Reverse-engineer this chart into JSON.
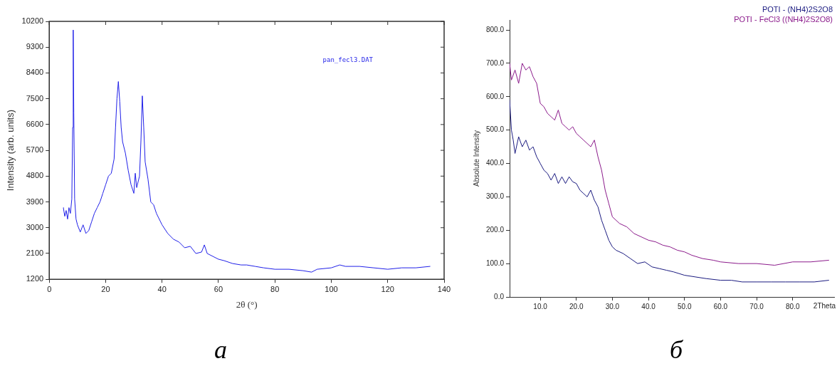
{
  "chart_data": [
    {
      "type": "line",
      "xlabel": "2θ (°)",
      "ylabel": "Intensity (arb. units)",
      "xlim": [
        0,
        140
      ],
      "ylim": [
        1200,
        10200
      ],
      "xticks": [
        0,
        20,
        40,
        60,
        80,
        100,
        120,
        140
      ],
      "yticks": [
        1200,
        2100,
        3000,
        3900,
        4800,
        5700,
        6600,
        7500,
        8400,
        9300,
        10200
      ],
      "grid": false,
      "legend": "top right",
      "line_style": "solid",
      "annotations": [
        "а"
      ],
      "series": [
        {
          "name": "pan_fecl3.DAT",
          "color": "#1f1fe8",
          "x": [
            5,
            5.5,
            6,
            6.5,
            7,
            7.5,
            8,
            8.3,
            8.5,
            8.7,
            9,
            9.5,
            10,
            11,
            12,
            13,
            14,
            15,
            16,
            17,
            18,
            19,
            20,
            21,
            22,
            23,
            23.5,
            24,
            24.5,
            25,
            25.5,
            26,
            27,
            28,
            29,
            30,
            30.5,
            31,
            32,
            32.5,
            33,
            33.5,
            34,
            35,
            36,
            37,
            38,
            40,
            42,
            44,
            46,
            48,
            50,
            52,
            54,
            55,
            56,
            58,
            60,
            62,
            65,
            68,
            70,
            73,
            76,
            80,
            85,
            90,
            93,
            95,
            100,
            103,
            105,
            110,
            115,
            120,
            125,
            130,
            135
          ],
          "values": [
            3700,
            3400,
            3600,
            3300,
            3700,
            3500,
            4000,
            6500,
            9900,
            7000,
            4000,
            3300,
            3100,
            2850,
            3100,
            2800,
            2900,
            3200,
            3500,
            3700,
            3900,
            4200,
            4500,
            4800,
            4900,
            5400,
            6500,
            7500,
            8100,
            7400,
            6500,
            6000,
            5600,
            5000,
            4500,
            4200,
            4900,
            4400,
            4800,
            6000,
            7600,
            6500,
            5300,
            4700,
            3900,
            3800,
            3500,
            3100,
            2800,
            2600,
            2500,
            2300,
            2350,
            2100,
            2150,
            2400,
            2100,
            2000,
            1900,
            1850,
            1750,
            1700,
            1700,
            1650,
            1600,
            1550,
            1550,
            1500,
            1450,
            1550,
            1600,
            1700,
            1650,
            1650,
            1600,
            1550,
            1600,
            1600,
            1650
          ]
        }
      ]
    },
    {
      "type": "line",
      "ylabel": "Absolute Intensity",
      "xlabel": "2Theta",
      "xlim": [
        1.5,
        91.5
      ],
      "ylim": [
        0,
        830
      ],
      "xticks": [
        {
          "value": 10,
          "label": "10.0"
        },
        {
          "value": 20,
          "label": "20.0"
        },
        {
          "value": 30,
          "label": "30.0"
        },
        {
          "value": 40,
          "label": "40.0"
        },
        {
          "value": 50,
          "label": "50.0"
        },
        {
          "value": 60,
          "label": "60.0"
        },
        {
          "value": 70,
          "label": "70.0"
        },
        {
          "value": 80,
          "label": "80.0"
        }
      ],
      "yticks": [
        {
          "value": 0,
          "label": "0.0"
        },
        {
          "value": 100,
          "label": "100.0"
        },
        {
          "value": 200,
          "label": "200.0"
        },
        {
          "value": 300,
          "label": "300.0"
        },
        {
          "value": 400,
          "label": "400.0"
        },
        {
          "value": 500,
          "label": "500.0"
        },
        {
          "value": 600,
          "label": "600.0"
        },
        {
          "value": 700,
          "label": "700.0"
        },
        {
          "value": 800,
          "label": "800.0"
        }
      ],
      "grid": false,
      "legend": "top right",
      "line_style": "solid",
      "annotations": [
        "б"
      ],
      "series": [
        {
          "name": "POTI - (NH4)2S2O8",
          "color": "#1a1a80",
          "x": [
            1.5,
            2,
            2.5,
            3,
            4,
            5,
            6,
            7,
            8,
            9,
            10,
            11,
            12,
            13,
            14,
            15,
            16,
            17,
            18,
            19,
            20,
            21,
            22,
            23,
            24,
            25,
            26,
            27,
            28,
            29,
            30,
            31,
            33,
            35,
            37,
            39,
            41,
            43,
            45,
            47,
            50,
            53,
            56,
            60,
            63,
            66,
            70,
            74,
            78,
            82,
            86,
            90
          ],
          "values": [
            590,
            500,
            470,
            430,
            480,
            450,
            470,
            440,
            450,
            420,
            400,
            380,
            370,
            350,
            370,
            340,
            360,
            340,
            360,
            345,
            340,
            320,
            310,
            300,
            320,
            290,
            270,
            230,
            200,
            170,
            150,
            140,
            130,
            115,
            100,
            105,
            90,
            85,
            80,
            75,
            65,
            60,
            55,
            50,
            50,
            45,
            45,
            45,
            45,
            45,
            45,
            50
          ]
        },
        {
          "name": "POTI - FeCl3 ((NH4)2S2O8)",
          "color": "#8b1a8b",
          "x": [
            1.5,
            2,
            3,
            4,
            5,
            6,
            7,
            8,
            9,
            10,
            11,
            12,
            13,
            14,
            15,
            16,
            17,
            18,
            19,
            20,
            21,
            22,
            23,
            24,
            25,
            26,
            27,
            28,
            29,
            30,
            32,
            34,
            36,
            38,
            40,
            42,
            44,
            46,
            48,
            50,
            52,
            55,
            58,
            60,
            65,
            70,
            75,
            80,
            85,
            90
          ],
          "values": [
            700,
            650,
            680,
            640,
            700,
            680,
            690,
            660,
            640,
            580,
            570,
            550,
            540,
            530,
            560,
            520,
            510,
            500,
            510,
            490,
            480,
            470,
            460,
            450,
            470,
            420,
            380,
            320,
            280,
            240,
            220,
            210,
            190,
            180,
            170,
            165,
            155,
            150,
            140,
            135,
            125,
            115,
            110,
            105,
            100,
            100,
            95,
            105,
            105,
            110
          ]
        }
      ]
    }
  ]
}
